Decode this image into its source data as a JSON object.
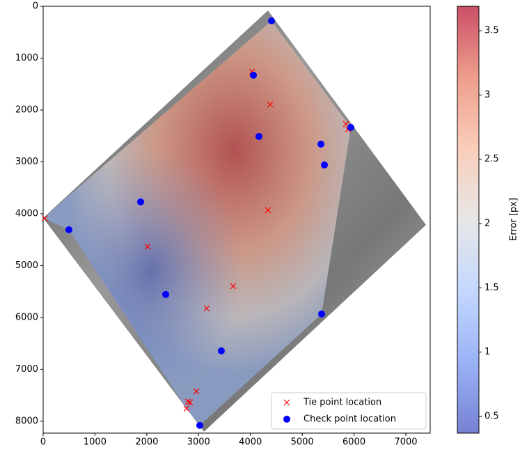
{
  "chart_data": {
    "type": "scatter",
    "xlim": [
      0,
      7470
    ],
    "xticks": [
      0,
      1000,
      2000,
      3000,
      4000,
      5000,
      6000,
      7000
    ],
    "ylim": [
      8230,
      0
    ],
    "yticks": [
      0,
      1000,
      2000,
      3000,
      4000,
      5000,
      6000,
      7000,
      8000
    ],
    "legend": "lower right",
    "series": [
      {
        "name": "Tie point location",
        "color": "#ff0000",
        "marker": "x",
        "x": [
          30,
          4031,
          4380,
          5845,
          5885,
          4337,
          2015,
          3668,
          3157,
          2956,
          2795,
          2835,
          2768
        ],
        "y": [
          4090,
          1262,
          1893,
          2268,
          2375,
          3933,
          4635,
          5396,
          5826,
          7423,
          7624,
          7637,
          7758
        ]
      },
      {
        "name": "Check point location",
        "color": "#0000ff",
        "marker": "o",
        "x": [
          4407,
          4058,
          4165,
          5361,
          5428,
          5938,
          1881,
          497,
          2365,
          5374,
          3439,
          3023
        ],
        "y": [
          282,
          1329,
          2510,
          2658,
          3060,
          2336,
          3772,
          4309,
          5557,
          5933,
          6644,
          8081
        ]
      }
    ],
    "colorbar": {
      "label": "Error [px]",
      "colormap": "coolwarm",
      "lim": [
        0.37,
        3.69
      ],
      "ticks": [
        0.5,
        1.0,
        1.5,
        2.0,
        2.5,
        3.0,
        3.5
      ]
    }
  }
}
